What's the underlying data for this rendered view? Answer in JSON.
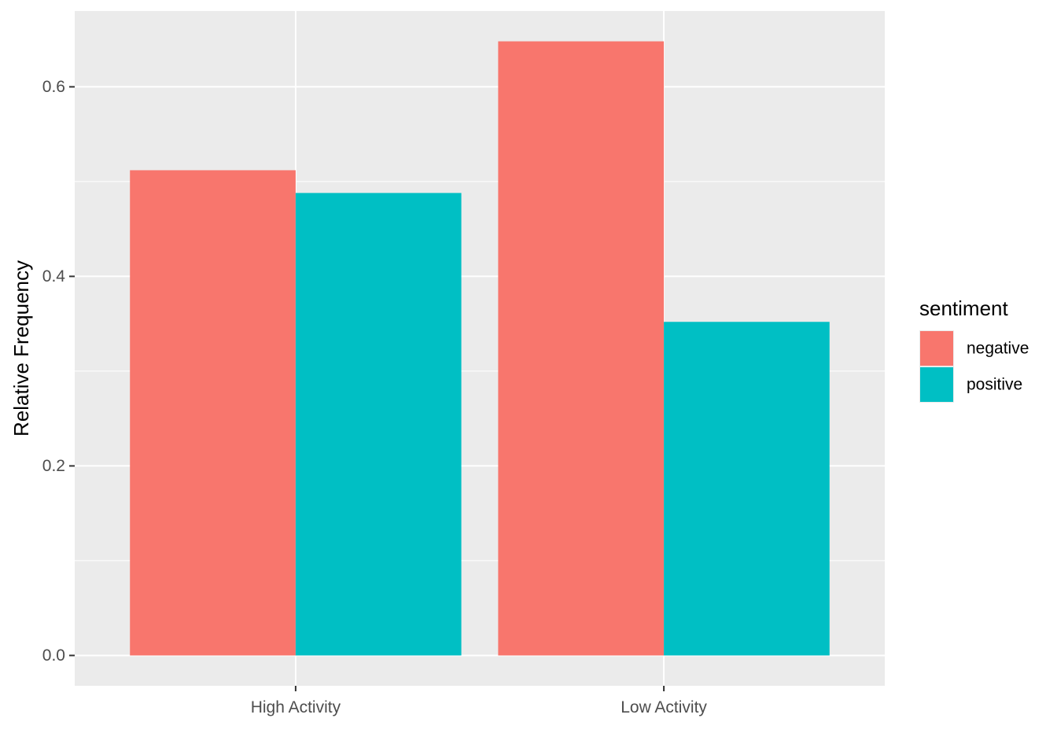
{
  "chart_data": {
    "type": "bar",
    "categories": [
      "High Activity",
      "Low Activity"
    ],
    "series": [
      {
        "name": "negative",
        "values": [
          0.512,
          0.648
        ],
        "color": "#F8766D"
      },
      {
        "name": "positive",
        "values": [
          0.488,
          0.352
        ],
        "color": "#00BFC4"
      }
    ],
    "xlabel": "",
    "ylabel": "Relative Frequency",
    "ylim": [
      -0.032,
      0.68
    ],
    "yticks": [
      0.0,
      0.2,
      0.4,
      0.6
    ],
    "ytick_labels": [
      "0.0",
      "0.2",
      "0.4",
      "0.6"
    ],
    "grid": true,
    "legend": {
      "title": "sentiment",
      "position": "right"
    },
    "panel_background": "#EBEBEB",
    "grid_color": "#FFFFFF"
  }
}
